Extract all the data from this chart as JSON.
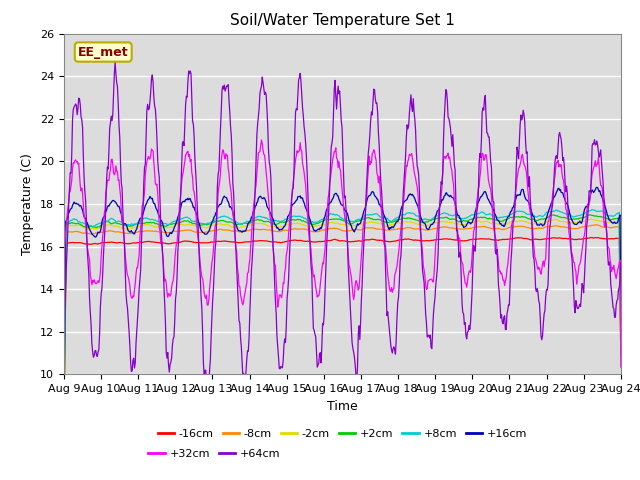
{
  "title": "Soil/Water Temperature Set 1",
  "xlabel": "Time",
  "ylabel": "Temperature (C)",
  "ylim": [
    10,
    26
  ],
  "yticks": [
    10,
    12,
    14,
    16,
    18,
    20,
    22,
    24,
    26
  ],
  "xtick_labels": [
    "Aug 9",
    "Aug 10",
    "Aug 11",
    "Aug 12",
    "Aug 13",
    "Aug 14",
    "Aug 15",
    "Aug 16",
    "Aug 17",
    "Aug 18",
    "Aug 19",
    "Aug 20",
    "Aug 21",
    "Aug 22",
    "Aug 23",
    "Aug 24"
  ],
  "annotation_text": "EE_met",
  "annotation_bg": "#ffffcc",
  "annotation_edge": "#bbaa00",
  "annotation_text_color": "#880000",
  "series": [
    {
      "label": "-16cm",
      "color": "#ff0000"
    },
    {
      "label": "-8cm",
      "color": "#ff8800"
    },
    {
      "label": "-2cm",
      "color": "#dddd00"
    },
    {
      "label": "+2cm",
      "color": "#00cc00"
    },
    {
      "label": "+8cm",
      "color": "#00cccc"
    },
    {
      "label": "+16cm",
      "color": "#0000bb"
    },
    {
      "label": "+32cm",
      "color": "#ff00ff"
    },
    {
      "label": "+64cm",
      "color": "#8800cc"
    }
  ],
  "plot_bg": "#dcdcdc"
}
